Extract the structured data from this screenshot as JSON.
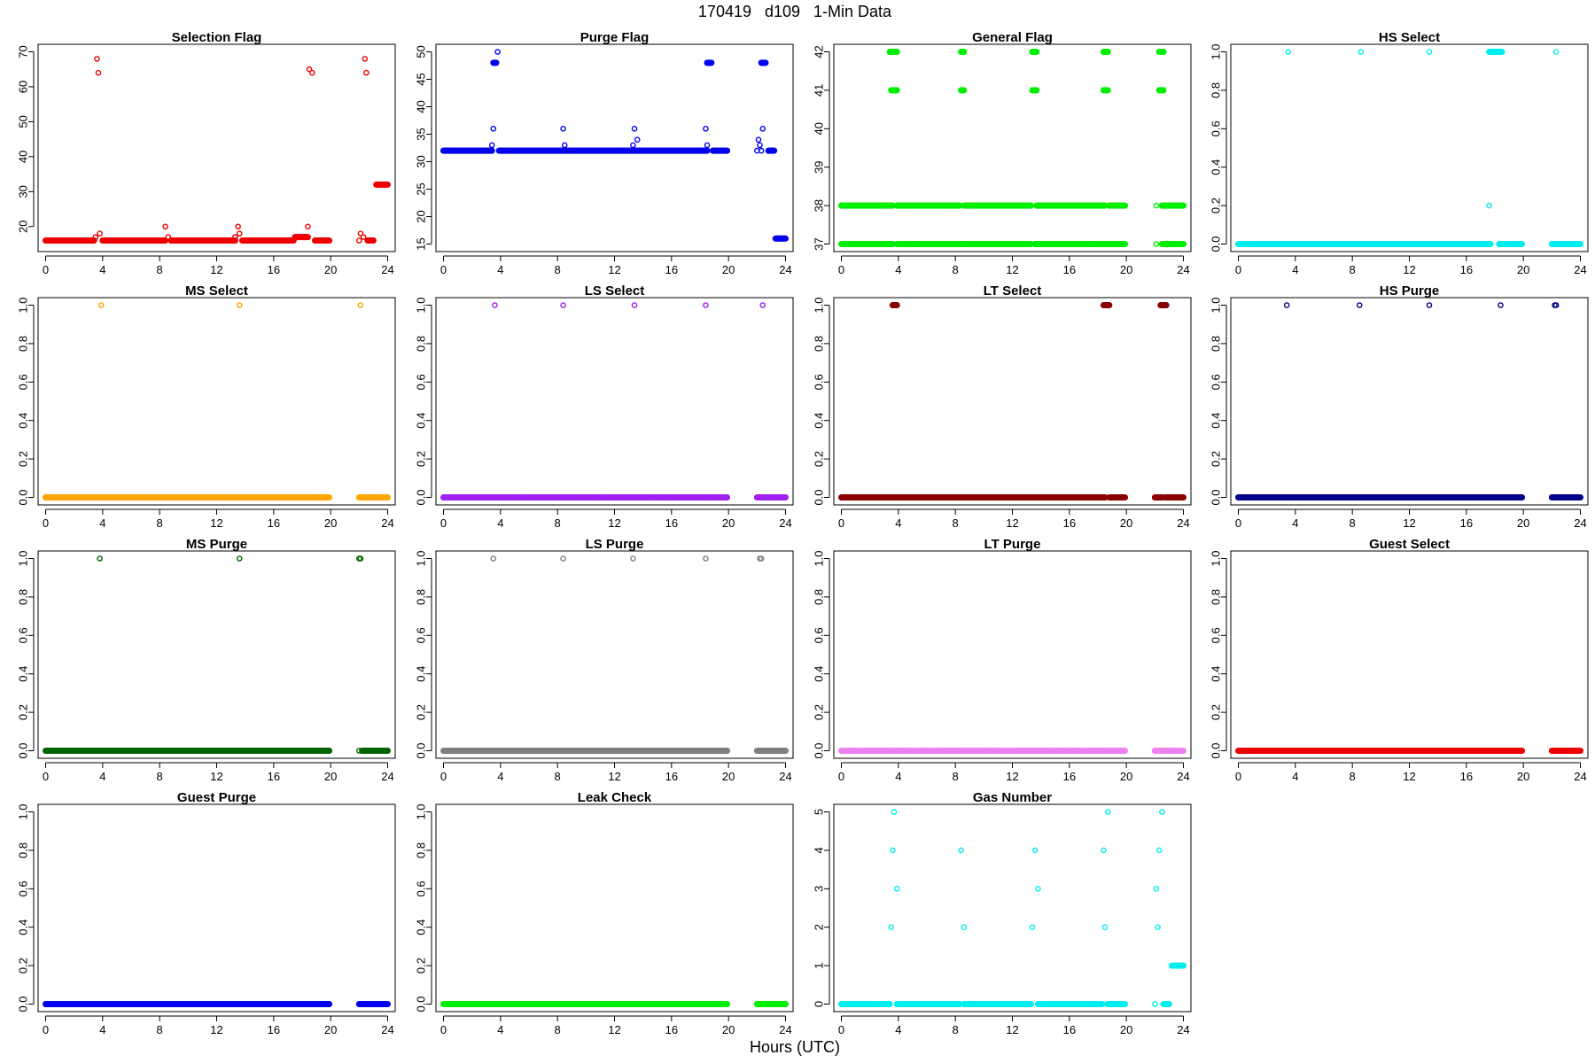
{
  "figure": {
    "title": "170419   d109   1-Min Data",
    "xlabel": "Hours (UTC)"
  },
  "chart_data": [
    {
      "type": "scatter",
      "title": "Selection Flag",
      "color": "#ee0000",
      "xlim": [
        0,
        24
      ],
      "xticks": [
        0,
        4,
        8,
        12,
        16,
        20,
        24
      ],
      "ylim": [
        15,
        70
      ],
      "yticks": [
        20,
        30,
        40,
        50,
        60,
        70
      ],
      "runs": [
        {
          "y": 16,
          "x0": 0,
          "x1": 3.4
        },
        {
          "y": 16,
          "x0": 4.0,
          "x1": 8.4
        },
        {
          "y": 16,
          "x0": 8.8,
          "x1": 13.3
        },
        {
          "y": 16,
          "x0": 13.8,
          "x1": 17.4
        },
        {
          "y": 17,
          "x0": 17.5,
          "x1": 18.4
        },
        {
          "y": 16,
          "x0": 18.9,
          "x1": 19.9
        },
        {
          "y": 16,
          "x0": 22.6,
          "x1": 23.0
        },
        {
          "y": 32,
          "x0": 23.2,
          "x1": 24.0
        }
      ],
      "points": [
        {
          "x": 3.5,
          "y": 17
        },
        {
          "x": 3.6,
          "y": 68
        },
        {
          "x": 3.7,
          "y": 64
        },
        {
          "x": 3.8,
          "y": 18
        },
        {
          "x": 8.4,
          "y": 20
        },
        {
          "x": 8.6,
          "y": 17
        },
        {
          "x": 13.3,
          "y": 17
        },
        {
          "x": 13.5,
          "y": 20
        },
        {
          "x": 13.6,
          "y": 18
        },
        {
          "x": 18.4,
          "y": 20
        },
        {
          "x": 18.5,
          "y": 65
        },
        {
          "x": 18.7,
          "y": 64
        },
        {
          "x": 22.0,
          "y": 16
        },
        {
          "x": 22.1,
          "y": 18
        },
        {
          "x": 22.3,
          "y": 17
        },
        {
          "x": 22.4,
          "y": 68
        },
        {
          "x": 22.5,
          "y": 64
        }
      ]
    },
    {
      "type": "scatter",
      "title": "Purge Flag",
      "color": "#0000ee",
      "xlim": [
        0,
        24
      ],
      "xticks": [
        0,
        4,
        8,
        12,
        16,
        20,
        24
      ],
      "ylim": [
        15,
        50
      ],
      "yticks": [
        15,
        20,
        25,
        30,
        35,
        40,
        45,
        50
      ],
      "runs": [
        {
          "y": 32,
          "x0": 0,
          "x1": 3.4
        },
        {
          "y": 32,
          "x0": 3.9,
          "x1": 18.5
        },
        {
          "y": 32,
          "x0": 18.9,
          "x1": 19.9
        },
        {
          "y": 32,
          "x0": 22.8,
          "x1": 23.2
        },
        {
          "y": 16,
          "x0": 23.3,
          "x1": 24.0
        },
        {
          "y": 48,
          "x0": 3.5,
          "x1": 3.7
        },
        {
          "y": 48,
          "x0": 18.5,
          "x1": 18.8
        },
        {
          "y": 48,
          "x0": 22.3,
          "x1": 22.6
        }
      ],
      "points": [
        {
          "x": 3.4,
          "y": 33
        },
        {
          "x": 3.5,
          "y": 36
        },
        {
          "x": 3.8,
          "y": 50
        },
        {
          "x": 8.4,
          "y": 36
        },
        {
          "x": 8.5,
          "y": 33
        },
        {
          "x": 13.3,
          "y": 33
        },
        {
          "x": 13.4,
          "y": 36
        },
        {
          "x": 13.6,
          "y": 34
        },
        {
          "x": 18.4,
          "y": 36
        },
        {
          "x": 18.5,
          "y": 33
        },
        {
          "x": 22.0,
          "y": 32
        },
        {
          "x": 22.1,
          "y": 34
        },
        {
          "x": 22.2,
          "y": 33
        },
        {
          "x": 22.3,
          "y": 32
        },
        {
          "x": 22.4,
          "y": 36
        }
      ]
    },
    {
      "type": "scatter",
      "title": "General Flag",
      "color": "#00ee00",
      "xlim": [
        0,
        24
      ],
      "xticks": [
        0,
        4,
        8,
        12,
        16,
        20,
        24
      ],
      "ylim": [
        37,
        42
      ],
      "yticks": [
        37,
        38,
        39,
        40,
        41,
        42
      ],
      "runs": [
        {
          "y": 37,
          "x0": 0,
          "x1": 3.6
        },
        {
          "y": 37,
          "x0": 3.9,
          "x1": 13.3
        },
        {
          "y": 37,
          "x0": 13.6,
          "x1": 19.9
        },
        {
          "y": 37,
          "x0": 22.5,
          "x1": 24.0
        },
        {
          "y": 38,
          "x0": 0,
          "x1": 3.6
        },
        {
          "y": 38,
          "x0": 3.9,
          "x1": 8.3
        },
        {
          "y": 38,
          "x0": 8.6,
          "x1": 13.3
        },
        {
          "y": 38,
          "x0": 13.7,
          "x1": 18.5
        },
        {
          "y": 38,
          "x0": 18.8,
          "x1": 19.9
        },
        {
          "y": 38,
          "x0": 22.5,
          "x1": 24.0
        },
        {
          "y": 41,
          "x0": 3.5,
          "x1": 3.9
        },
        {
          "y": 41,
          "x0": 8.4,
          "x1": 8.6
        },
        {
          "y": 41,
          "x0": 13.4,
          "x1": 13.7
        },
        {
          "y": 41,
          "x0": 18.4,
          "x1": 18.7
        },
        {
          "y": 41,
          "x0": 22.3,
          "x1": 22.6
        },
        {
          "y": 42,
          "x0": 3.4,
          "x1": 3.9
        },
        {
          "y": 42,
          "x0": 8.4,
          "x1": 8.6
        },
        {
          "y": 42,
          "x0": 13.4,
          "x1": 13.7
        },
        {
          "y": 42,
          "x0": 18.4,
          "x1": 18.7
        },
        {
          "y": 42,
          "x0": 22.3,
          "x1": 22.6
        }
      ],
      "points": [
        {
          "x": 3.8,
          "y": 42
        },
        {
          "x": 3.8,
          "y": 41
        },
        {
          "x": 22.1,
          "y": 38
        },
        {
          "x": 22.1,
          "y": 37
        }
      ]
    },
    {
      "type": "scatter",
      "title": "HS Select",
      "color": "#00eeee",
      "xlim": [
        0,
        24
      ],
      "xticks": [
        0,
        4,
        8,
        12,
        16,
        20,
        24
      ],
      "ylim": [
        0,
        1
      ],
      "yticks": [
        0.0,
        0.2,
        0.4,
        0.6,
        0.8,
        1.0
      ],
      "runs": [
        {
          "y": 0,
          "x0": 0,
          "x1": 17.7
        },
        {
          "y": 0,
          "x0": 18.3,
          "x1": 19.9
        },
        {
          "y": 0,
          "x0": 22.0,
          "x1": 24.0
        },
        {
          "y": 1,
          "x0": 17.6,
          "x1": 18.5
        }
      ],
      "points": [
        {
          "x": 3.5,
          "y": 1
        },
        {
          "x": 8.6,
          "y": 1
        },
        {
          "x": 13.4,
          "y": 1
        },
        {
          "x": 22.3,
          "y": 1
        },
        {
          "x": 17.6,
          "y": 0.2
        },
        {
          "x": 18.4,
          "y": 0
        }
      ]
    },
    {
      "type": "scatter",
      "title": "MS Select",
      "color": "#ffa500",
      "xlim": [
        0,
        24
      ],
      "xticks": [
        0,
        4,
        8,
        12,
        16,
        20,
        24
      ],
      "ylim": [
        0,
        1
      ],
      "yticks": [
        0.0,
        0.2,
        0.4,
        0.6,
        0.8,
        1.0
      ],
      "runs": [
        {
          "y": 0,
          "x0": 0,
          "x1": 19.9
        },
        {
          "y": 0,
          "x0": 22.0,
          "x1": 24.0
        }
      ],
      "points": [
        {
          "x": 3.9,
          "y": 1
        },
        {
          "x": 13.6,
          "y": 1
        },
        {
          "x": 22.1,
          "y": 1
        }
      ]
    },
    {
      "type": "scatter",
      "title": "LS Select",
      "color": "#a020f0",
      "xlim": [
        0,
        24
      ],
      "xticks": [
        0,
        4,
        8,
        12,
        16,
        20,
        24
      ],
      "ylim": [
        0,
        1
      ],
      "yticks": [
        0.0,
        0.2,
        0.4,
        0.6,
        0.8,
        1.0
      ],
      "runs": [
        {
          "y": 0,
          "x0": 0,
          "x1": 19.9
        },
        {
          "y": 0,
          "x0": 22.0,
          "x1": 24.0
        }
      ],
      "points": [
        {
          "x": 3.6,
          "y": 1
        },
        {
          "x": 8.4,
          "y": 1
        },
        {
          "x": 13.4,
          "y": 1
        },
        {
          "x": 18.4,
          "y": 1
        },
        {
          "x": 22.4,
          "y": 1
        }
      ]
    },
    {
      "type": "scatter",
      "title": "LT Select",
      "color": "#8b0000",
      "xlim": [
        0,
        24
      ],
      "xticks": [
        0,
        4,
        8,
        12,
        16,
        20,
        24
      ],
      "ylim": [
        0,
        1
      ],
      "yticks": [
        0.0,
        0.2,
        0.4,
        0.6,
        0.8,
        1.0
      ],
      "runs": [
        {
          "y": 0,
          "x0": 0,
          "x1": 18.5
        },
        {
          "y": 0,
          "x0": 18.8,
          "x1": 19.9
        },
        {
          "y": 0,
          "x0": 22.0,
          "x1": 22.6
        },
        {
          "y": 0,
          "x0": 22.8,
          "x1": 24.0
        },
        {
          "y": 1,
          "x0": 3.6,
          "x1": 3.9
        },
        {
          "y": 1,
          "x0": 18.4,
          "x1": 18.8
        },
        {
          "y": 1,
          "x0": 22.4,
          "x1": 22.8
        }
      ],
      "points": []
    },
    {
      "type": "scatter",
      "title": "HS Purge",
      "color": "#00008b",
      "xlim": [
        0,
        24
      ],
      "xticks": [
        0,
        4,
        8,
        12,
        16,
        20,
        24
      ],
      "ylim": [
        0,
        1
      ],
      "yticks": [
        0.0,
        0.2,
        0.4,
        0.6,
        0.8,
        1.0
      ],
      "runs": [
        {
          "y": 0,
          "x0": 0,
          "x1": 19.9
        },
        {
          "y": 0,
          "x0": 22.0,
          "x1": 24.0
        }
      ],
      "points": [
        {
          "x": 3.4,
          "y": 1
        },
        {
          "x": 8.5,
          "y": 1
        },
        {
          "x": 13.4,
          "y": 1
        },
        {
          "x": 18.4,
          "y": 1
        },
        {
          "x": 22.2,
          "y": 1
        },
        {
          "x": 22.3,
          "y": 1
        }
      ]
    },
    {
      "type": "scatter",
      "title": "MS Purge",
      "color": "#006400",
      "xlim": [
        0,
        24
      ],
      "xticks": [
        0,
        4,
        8,
        12,
        16,
        20,
        24
      ],
      "ylim": [
        0,
        1
      ],
      "yticks": [
        0.0,
        0.2,
        0.4,
        0.6,
        0.8,
        1.0
      ],
      "runs": [
        {
          "y": 0,
          "x0": 0,
          "x1": 19.9
        },
        {
          "y": 0,
          "x0": 22.2,
          "x1": 24.0
        }
      ],
      "points": [
        {
          "x": 3.8,
          "y": 1
        },
        {
          "x": 13.6,
          "y": 1
        },
        {
          "x": 22.0,
          "y": 1
        },
        {
          "x": 22.1,
          "y": 1
        },
        {
          "x": 22.0,
          "y": 0
        }
      ]
    },
    {
      "type": "scatter",
      "title": "LS Purge",
      "color": "#808080",
      "xlim": [
        0,
        24
      ],
      "xticks": [
        0,
        4,
        8,
        12,
        16,
        20,
        24
      ],
      "ylim": [
        0,
        1
      ],
      "yticks": [
        0.0,
        0.2,
        0.4,
        0.6,
        0.8,
        1.0
      ],
      "runs": [
        {
          "y": 0,
          "x0": 0,
          "x1": 19.9
        },
        {
          "y": 0,
          "x0": 22.0,
          "x1": 24.0
        }
      ],
      "points": [
        {
          "x": 3.5,
          "y": 1
        },
        {
          "x": 8.4,
          "y": 1
        },
        {
          "x": 13.3,
          "y": 1
        },
        {
          "x": 18.4,
          "y": 1
        },
        {
          "x": 22.2,
          "y": 1
        },
        {
          "x": 22.3,
          "y": 1
        }
      ]
    },
    {
      "type": "scatter",
      "title": "LT Purge",
      "color": "#ee82ee",
      "xlim": [
        0,
        24
      ],
      "xticks": [
        0,
        4,
        8,
        12,
        16,
        20,
        24
      ],
      "ylim": [
        0,
        1
      ],
      "yticks": [
        0.0,
        0.2,
        0.4,
        0.6,
        0.8,
        1.0
      ],
      "runs": [
        {
          "y": 0,
          "x0": 0,
          "x1": 19.9
        },
        {
          "y": 0,
          "x0": 22.0,
          "x1": 24.0
        }
      ],
      "points": []
    },
    {
      "type": "scatter",
      "title": "Guest Select",
      "color": "#ee0000",
      "xlim": [
        0,
        24
      ],
      "xticks": [
        0,
        4,
        8,
        12,
        16,
        20,
        24
      ],
      "ylim": [
        0,
        1
      ],
      "yticks": [
        0.0,
        0.2,
        0.4,
        0.6,
        0.8,
        1.0
      ],
      "runs": [
        {
          "y": 0,
          "x0": 0,
          "x1": 19.9
        },
        {
          "y": 0,
          "x0": 22.0,
          "x1": 24.0
        }
      ],
      "points": []
    },
    {
      "type": "scatter",
      "title": "Guest Purge",
      "color": "#0000ee",
      "xlim": [
        0,
        24
      ],
      "xticks": [
        0,
        4,
        8,
        12,
        16,
        20,
        24
      ],
      "ylim": [
        0,
        1
      ],
      "yticks": [
        0.0,
        0.2,
        0.4,
        0.6,
        0.8,
        1.0
      ],
      "runs": [
        {
          "y": 0,
          "x0": 0,
          "x1": 19.9
        },
        {
          "y": 0,
          "x0": 22.0,
          "x1": 24.0
        }
      ],
      "points": []
    },
    {
      "type": "scatter",
      "title": "Leak Check",
      "color": "#00ee00",
      "xlim": [
        0,
        24
      ],
      "xticks": [
        0,
        4,
        8,
        12,
        16,
        20,
        24
      ],
      "ylim": [
        0,
        1
      ],
      "yticks": [
        0.0,
        0.2,
        0.4,
        0.6,
        0.8,
        1.0
      ],
      "runs": [
        {
          "y": 0,
          "x0": 0,
          "x1": 19.9
        },
        {
          "y": 0,
          "x0": 22.0,
          "x1": 24.0
        }
      ],
      "points": []
    },
    {
      "type": "scatter",
      "title": "Gas Number",
      "color": "#00eeee",
      "xlim": [
        0,
        24
      ],
      "xticks": [
        0,
        4,
        8,
        12,
        16,
        20,
        24
      ],
      "ylim": [
        0,
        5
      ],
      "yticks": [
        0,
        1,
        2,
        3,
        4,
        5
      ],
      "runs": [
        {
          "y": 0,
          "x0": 0,
          "x1": 3.4
        },
        {
          "y": 0,
          "x0": 3.9,
          "x1": 8.3
        },
        {
          "y": 0,
          "x0": 8.6,
          "x1": 13.3
        },
        {
          "y": 0,
          "x0": 13.8,
          "x1": 18.3
        },
        {
          "y": 0,
          "x0": 18.7,
          "x1": 19.9
        },
        {
          "y": 0,
          "x0": 22.6,
          "x1": 23.0
        },
        {
          "y": 1,
          "x0": 23.2,
          "x1": 24.0
        }
      ],
      "points": [
        {
          "x": 3.5,
          "y": 2
        },
        {
          "x": 3.6,
          "y": 4
        },
        {
          "x": 3.7,
          "y": 5
        },
        {
          "x": 3.9,
          "y": 3
        },
        {
          "x": 8.4,
          "y": 4
        },
        {
          "x": 8.6,
          "y": 2
        },
        {
          "x": 13.4,
          "y": 2
        },
        {
          "x": 13.6,
          "y": 4
        },
        {
          "x": 13.8,
          "y": 3
        },
        {
          "x": 18.4,
          "y": 4
        },
        {
          "x": 18.5,
          "y": 2
        },
        {
          "x": 18.7,
          "y": 5
        },
        {
          "x": 22.0,
          "y": 0
        },
        {
          "x": 22.1,
          "y": 3
        },
        {
          "x": 22.2,
          "y": 2
        },
        {
          "x": 22.3,
          "y": 4
        },
        {
          "x": 22.5,
          "y": 5
        }
      ]
    }
  ]
}
